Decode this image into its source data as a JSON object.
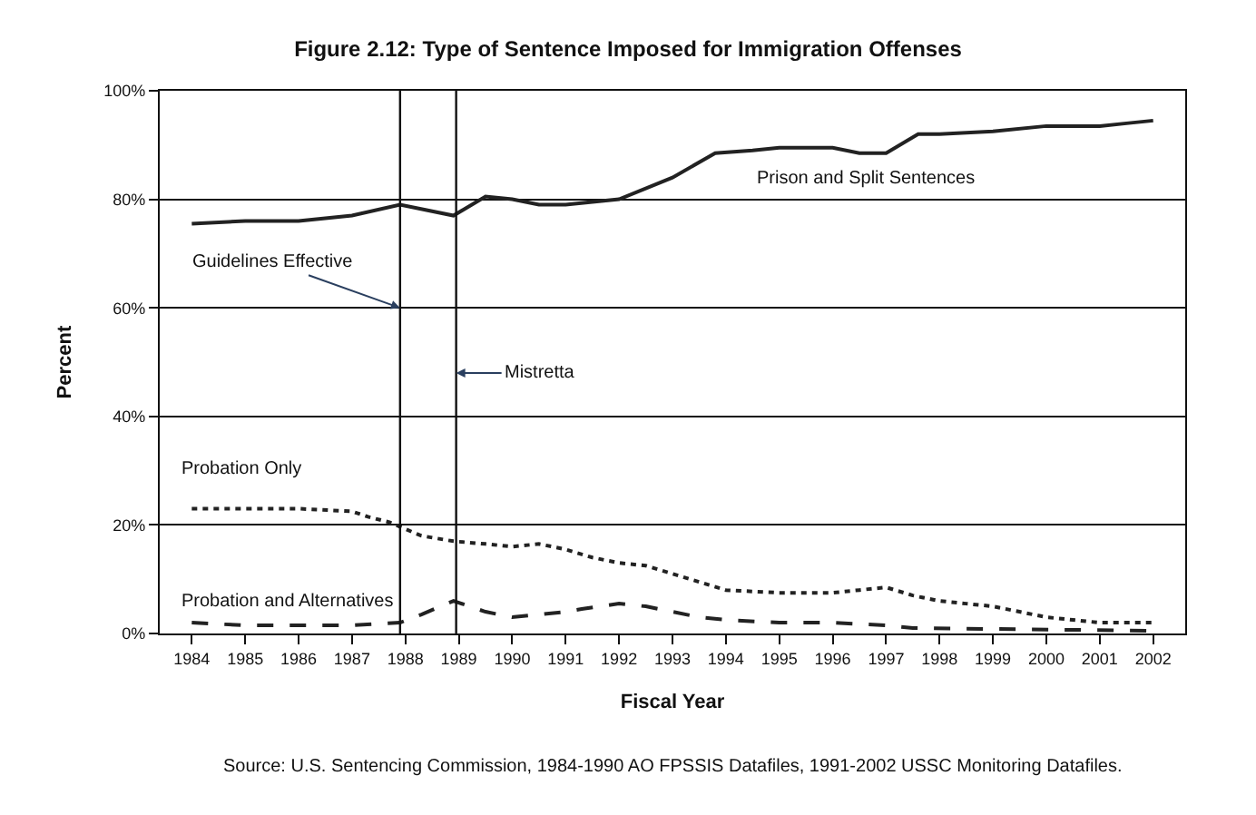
{
  "chart_data": {
    "type": "line",
    "title": "Figure 2.12: Type of Sentence Imposed for Immigration Offenses",
    "xlabel": "Fiscal Year",
    "ylabel": "Percent",
    "xlim": [
      1983.4,
      2002.6
    ],
    "xticks": [
      1984,
      1985,
      1986,
      1987,
      1988,
      1989,
      1990,
      1991,
      1992,
      1993,
      1994,
      1995,
      1996,
      1997,
      1998,
      1999,
      2000,
      2001,
      2002
    ],
    "ylim": [
      0,
      100
    ],
    "yticks": [
      {
        "value": 0,
        "label": "0%"
      },
      {
        "value": 20,
        "label": "20%"
      },
      {
        "value": 40,
        "label": "40%"
      },
      {
        "value": 60,
        "label": "60%"
      },
      {
        "value": 80,
        "label": "80%"
      },
      {
        "value": 100,
        "label": "100%"
      }
    ],
    "grid": "y",
    "legend": false,
    "series": [
      {
        "name": "Prison and Split Sentences",
        "color": "#222222",
        "line_style": "solid",
        "x": [
          1984,
          1985,
          1986,
          1987,
          1987.9,
          1988.9,
          1989.5,
          1990,
          1990.5,
          1991,
          1991.5,
          1992,
          1993,
          1993.8,
          1994.5,
          1995,
          1996,
          1996.5,
          1997,
          1997.6,
          1998,
          1999,
          2000,
          2001,
          2001.5,
          2002
        ],
        "values": [
          75.5,
          76,
          76,
          77,
          79,
          77,
          80.5,
          80,
          79,
          79,
          79.5,
          80,
          84,
          88.5,
          89,
          89.5,
          89.5,
          88.5,
          88.5,
          92,
          92,
          92.5,
          93.5,
          93.5,
          94,
          94.5
        ]
      },
      {
        "name": "Probation Only",
        "color": "#222222",
        "line_style": "dotted",
        "x": [
          1984,
          1985,
          1986,
          1987,
          1987.3,
          1987.7,
          1988.3,
          1988.9,
          1989.5,
          1990,
          1990.5,
          1991,
          1991.5,
          1992,
          1992.5,
          1993,
          1993.5,
          1994,
          1995,
          1996,
          1996.5,
          1997,
          1997.5,
          1998,
          1998.5,
          1999,
          1999.5,
          2000,
          2000.5,
          2001,
          2002
        ],
        "values": [
          23,
          23,
          23,
          22.5,
          21.5,
          20.5,
          18,
          17,
          16.5,
          16,
          16.5,
          15.5,
          14,
          13,
          12.5,
          11,
          9.5,
          8,
          7.5,
          7.5,
          8,
          8.5,
          7,
          6,
          5.5,
          5,
          4,
          3,
          2.5,
          2,
          2
        ]
      },
      {
        "name": "Probation and Alternatives",
        "color": "#222222",
        "line_style": "dashed",
        "x": [
          1984,
          1985,
          1986,
          1987,
          1987.9,
          1988.3,
          1988.9,
          1989.5,
          1990,
          1991,
          1991.3,
          1992,
          1992.5,
          1993,
          1993.5,
          1994,
          1995,
          1996,
          1997,
          1997.5,
          2002
        ],
        "values": [
          2,
          1.5,
          1.5,
          1.5,
          2,
          3.5,
          6,
          4,
          3,
          4,
          4.5,
          5.5,
          5,
          4,
          3,
          2.5,
          2,
          2,
          1.5,
          1,
          0.5
        ]
      }
    ],
    "ref_lines": [
      {
        "axis": "x",
        "value": 1987.9,
        "label": "Guidelines Effective"
      },
      {
        "axis": "x",
        "value": 1988.95,
        "label": "Mistretta"
      }
    ],
    "annotations": [
      "Source: U.S. Sentencing Commission, 1984-1990 AO FPSSIS Datafiles, 1991-2002 USSC Monitoring Datafiles."
    ]
  }
}
